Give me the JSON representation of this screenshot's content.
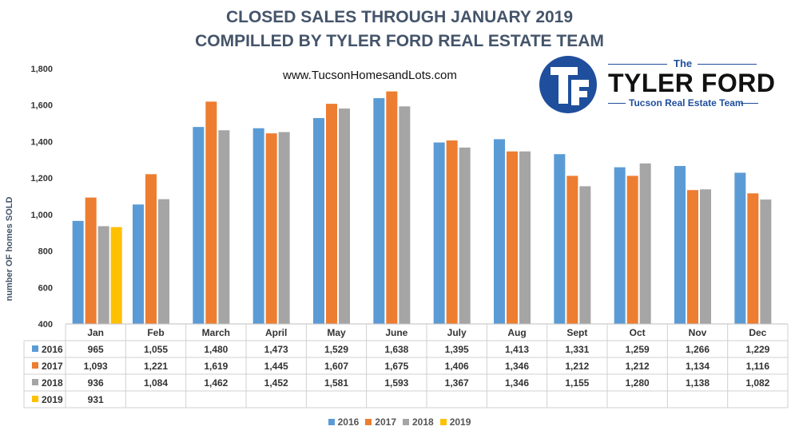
{
  "header": {
    "title_line1": "CLOSED SALES THROUGH JANUARY 2019",
    "title_line2": "COMPILLED BY TYLER FORD REAL ESTATE TEAM",
    "website": "www.TucsonHomesandLots.com"
  },
  "logo": {
    "the": "The",
    "name": "TYLER FORD",
    "team": "Tucson Real Estate Team"
  },
  "colors": {
    "2016": "#5b9bd5",
    "2017": "#ed7d31",
    "2018": "#a5a5a5",
    "2019": "#ffc000",
    "title": "#44546a",
    "brand_blue": "#1f4e9c"
  },
  "chart_data": {
    "type": "bar",
    "ylabel": "number OF homes SOLD",
    "ylim": [
      400,
      1800
    ],
    "yticks": [
      "400",
      "600",
      "800",
      "1,000",
      "1,200",
      "1,400",
      "1,600",
      "1,800"
    ],
    "ytick_values": [
      400,
      600,
      800,
      1000,
      1200,
      1400,
      1600,
      1800
    ],
    "grid": false,
    "legend_position": "bottom",
    "categories": [
      "Jan",
      "Feb",
      "March",
      "April",
      "May",
      "June",
      "July",
      "Aug",
      "Sept",
      "Oct",
      "Nov",
      "Dec"
    ],
    "series": [
      {
        "name": "2016",
        "values": [
          965,
          1055,
          1480,
          1473,
          1529,
          1638,
          1395,
          1413,
          1331,
          1259,
          1266,
          1229
        ],
        "labels": [
          "965",
          "1,055",
          "1,480",
          "1,473",
          "1,529",
          "1,638",
          "1,395",
          "1,413",
          "1,331",
          "1,259",
          "1,266",
          "1,229"
        ]
      },
      {
        "name": "2017",
        "values": [
          1093,
          1221,
          1619,
          1445,
          1607,
          1675,
          1406,
          1346,
          1212,
          1212,
          1134,
          1116
        ],
        "labels": [
          "1,093",
          "1,221",
          "1,619",
          "1,445",
          "1,607",
          "1,675",
          "1,406",
          "1,346",
          "1,212",
          "1,212",
          "1,134",
          "1,116"
        ]
      },
      {
        "name": "2018",
        "values": [
          936,
          1084,
          1462,
          1452,
          1581,
          1593,
          1367,
          1346,
          1155,
          1280,
          1138,
          1082
        ],
        "labels": [
          "936",
          "1,084",
          "1,462",
          "1,452",
          "1,581",
          "1,593",
          "1,367",
          "1,346",
          "1,155",
          "1,280",
          "1,138",
          "1,082"
        ]
      },
      {
        "name": "2019",
        "values": [
          931,
          null,
          null,
          null,
          null,
          null,
          null,
          null,
          null,
          null,
          null,
          null
        ],
        "labels": [
          "931",
          "",
          "",
          "",
          "",
          "",
          "",
          "",
          "",
          "",
          "",
          ""
        ]
      }
    ]
  }
}
